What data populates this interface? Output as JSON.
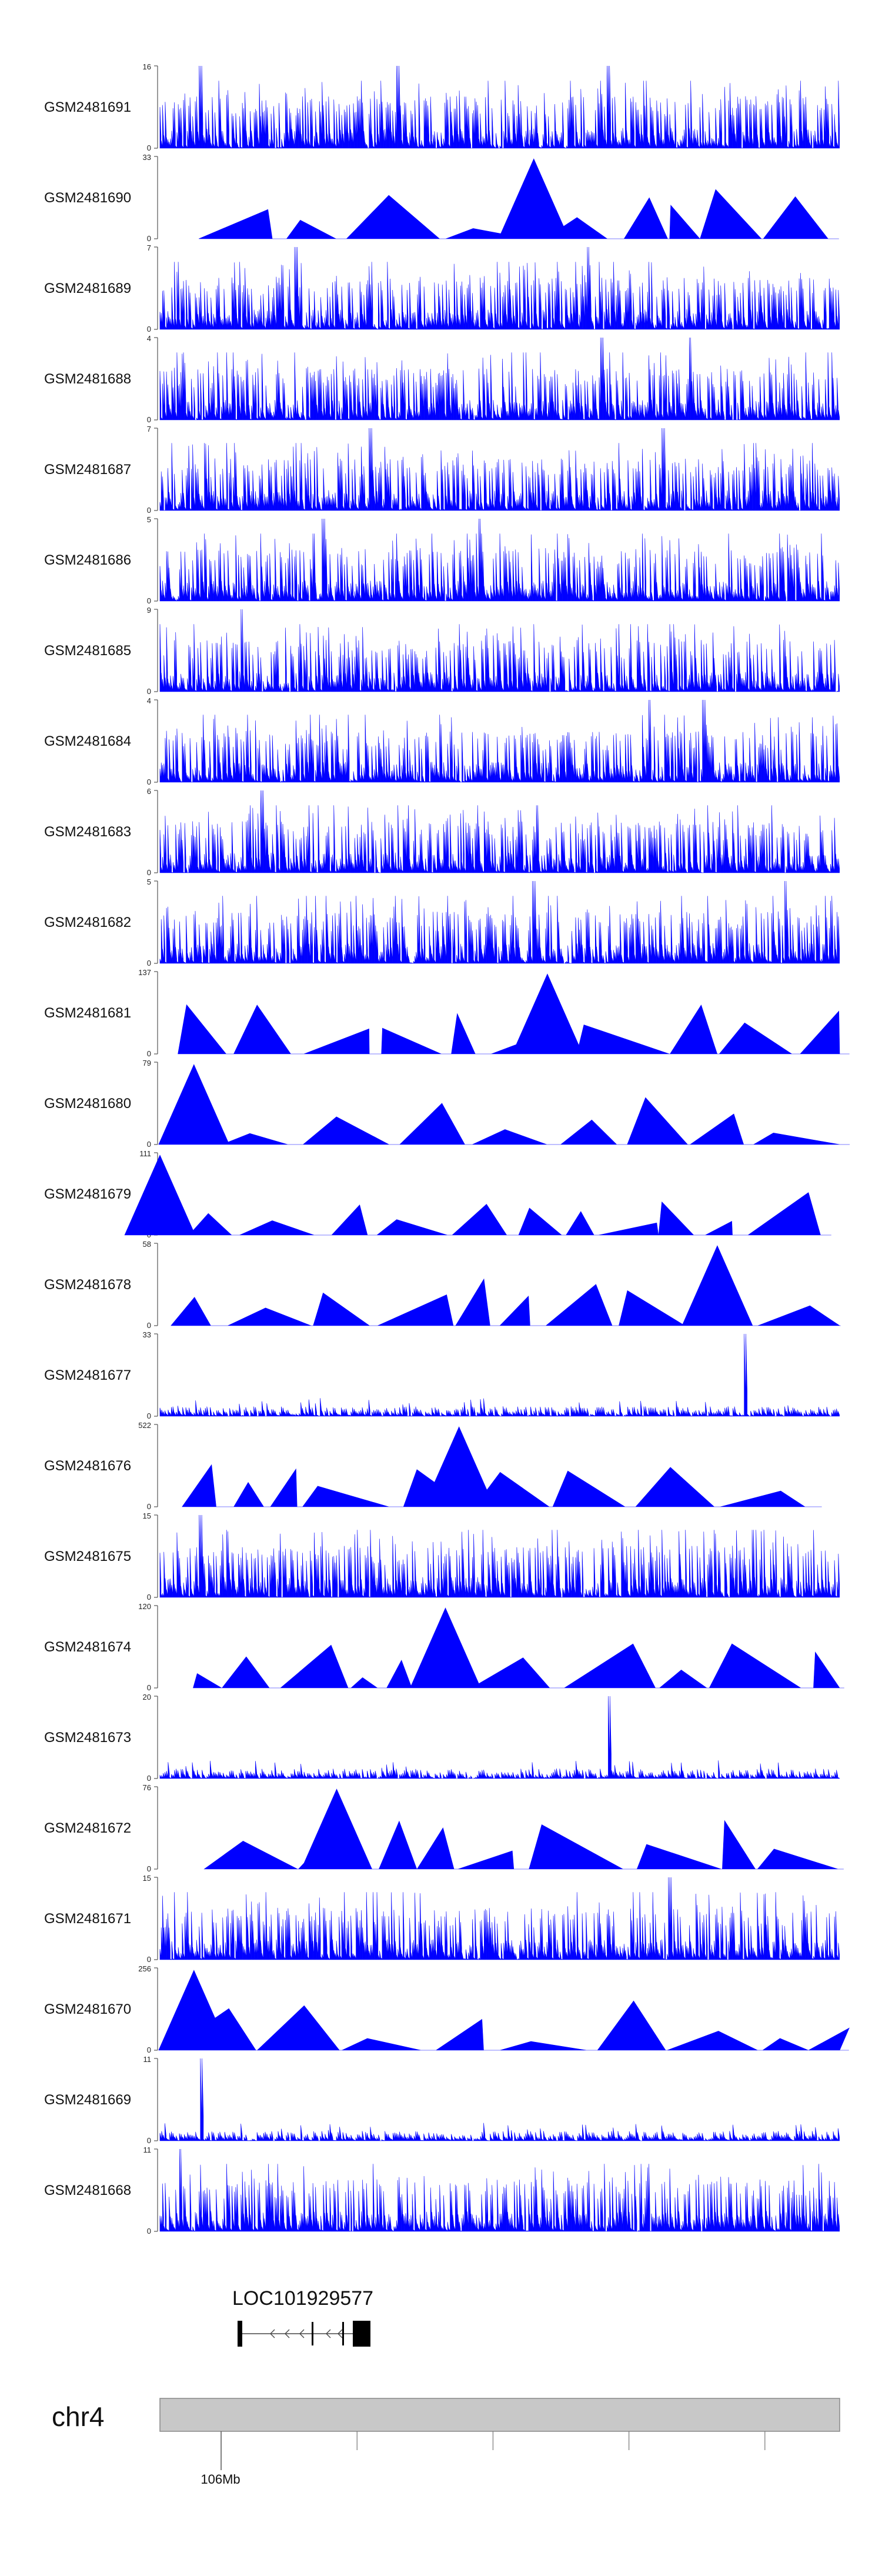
{
  "chart_data": {
    "type": "area",
    "title": "",
    "xlabel": "",
    "ylabel": "",
    "color": "#0000ff",
    "tracks": [
      {
        "name": "GSM2481691",
        "ymax": "16",
        "ymin": "0",
        "peaks": [
          0.06,
          0.35,
          0.66
        ],
        "style": "dense"
      },
      {
        "name": "GSM2481690",
        "ymax": "33",
        "ymin": "0",
        "peaks": [
          0.55
        ],
        "style": "sparse"
      },
      {
        "name": "GSM2481689",
        "ymax": "7",
        "ymin": "0",
        "peaks": [
          0.2,
          0.63
        ],
        "style": "dense"
      },
      {
        "name": "GSM2481688",
        "ymax": "4",
        "ymin": "0",
        "peaks": [
          0.65,
          0.78
        ],
        "style": "dense"
      },
      {
        "name": "GSM2481687",
        "ymax": "7",
        "ymin": "0",
        "peaks": [
          0.31,
          0.74
        ],
        "style": "dense"
      },
      {
        "name": "GSM2481686",
        "ymax": "5",
        "ymin": "0",
        "peaks": [
          0.24,
          0.47
        ],
        "style": "dense"
      },
      {
        "name": "GSM2481685",
        "ymax": "9",
        "ymin": "0",
        "peaks": [
          0.12
        ],
        "style": "dense"
      },
      {
        "name": "GSM2481684",
        "ymax": "4",
        "ymin": "0",
        "peaks": [
          0.72,
          0.8
        ],
        "style": "dense"
      },
      {
        "name": "GSM2481683",
        "ymax": "6",
        "ymin": "0",
        "peaks": [
          0.15
        ],
        "style": "dense"
      },
      {
        "name": "GSM2481682",
        "ymax": "5",
        "ymin": "0",
        "peaks": [
          0.55,
          0.92
        ],
        "style": "dense"
      },
      {
        "name": "GSM2481681",
        "ymax": "137",
        "ymin": "0",
        "peaks": [
          0.57
        ],
        "style": "sparse"
      },
      {
        "name": "GSM2481680",
        "ymax": "79",
        "ymin": "0",
        "peaks": [
          0.05
        ],
        "style": "sparse"
      },
      {
        "name": "GSM2481679",
        "ymax": "111",
        "ymin": "0",
        "peaks": [
          0.0
        ],
        "style": "sparse"
      },
      {
        "name": "GSM2481678",
        "ymax": "58",
        "ymin": "0",
        "peaks": [
          0.82
        ],
        "style": "sparse"
      },
      {
        "name": "GSM2481677",
        "ymax": "33",
        "ymin": "0",
        "peaks": [
          0.86
        ],
        "style": "flat"
      },
      {
        "name": "GSM2481676",
        "ymax": "522",
        "ymin": "0",
        "peaks": [
          0.44
        ],
        "style": "sparse"
      },
      {
        "name": "GSM2481675",
        "ymax": "15",
        "ymin": "0",
        "peaks": [
          0.06
        ],
        "style": "dense"
      },
      {
        "name": "GSM2481674",
        "ymax": "120",
        "ymin": "0",
        "peaks": [
          0.42
        ],
        "style": "sparse"
      },
      {
        "name": "GSM2481673",
        "ymax": "20",
        "ymin": "0",
        "peaks": [
          0.66
        ],
        "style": "flat"
      },
      {
        "name": "GSM2481672",
        "ymax": "76",
        "ymin": "0",
        "peaks": [
          0.26
        ],
        "style": "sparse"
      },
      {
        "name": "GSM2481671",
        "ymax": "15",
        "ymin": "0",
        "peaks": [
          0.75
        ],
        "style": "dense"
      },
      {
        "name": "GSM2481670",
        "ymax": "256",
        "ymin": "0",
        "peaks": [
          0.05
        ],
        "style": "sparse"
      },
      {
        "name": "GSM2481669",
        "ymax": "11",
        "ymin": "0",
        "peaks": [
          0.06
        ],
        "style": "flat"
      },
      {
        "name": "GSM2481668",
        "ymax": "11",
        "ymin": "0",
        "peaks": [
          0.03
        ],
        "style": "dense"
      }
    ],
    "gene": {
      "name": "LOC101929577",
      "strand": "-",
      "start_frac": 0.125,
      "end_frac": 0.31
    },
    "chromosome": {
      "name": "chr4",
      "tick_label": "106Mb",
      "major_tick_frac": 0.09,
      "minor_ticks_frac": [
        0.29,
        0.49,
        0.69,
        0.89
      ]
    }
  }
}
